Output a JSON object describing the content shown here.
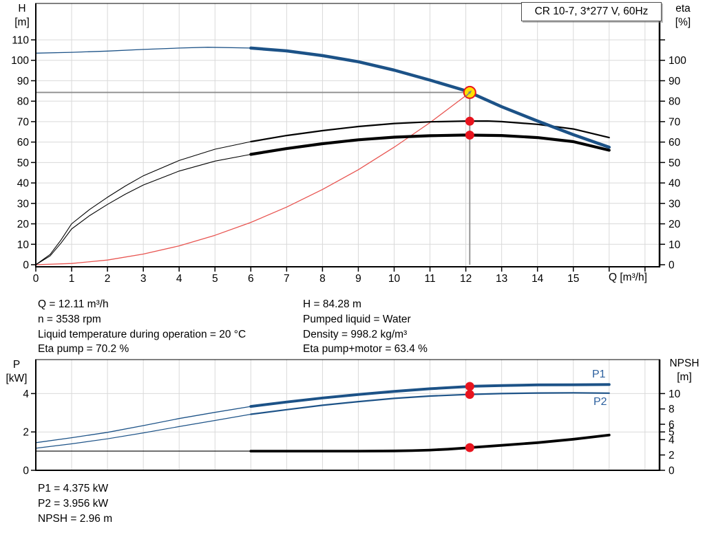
{
  "title_box": "CR 10-7, 3*277 V, 60Hz",
  "axis_titles": {
    "h": [
      "H",
      "[m]"
    ],
    "eta": [
      "eta",
      "[%]"
    ],
    "p": [
      "P",
      "[kW]"
    ],
    "npsh": [
      "NPSH",
      "[m]"
    ],
    "q": "Q [m³/h]"
  },
  "labels": {
    "p1": "P1",
    "p2": "P2"
  },
  "annotations": {
    "left": [
      "Q = 12.11 m³/h",
      "n = 3538 rpm",
      "Liquid temperature during operation = 20 °C",
      "Eta pump = 70.2 %"
    ],
    "right": [
      "H = 84.28 m",
      "Pumped liquid = Water",
      "Density = 998.2 kg/m³",
      "Eta pump+motor = 63.4 %"
    ],
    "footer": [
      "P1 = 4.375 kW",
      "P2 = 3.956 kW",
      "NPSH = 2.96 m"
    ]
  },
  "colors": {
    "grid": "#d9d9d9",
    "guide": "#8c8c8c",
    "curve_blue": "#1c5287",
    "curve_black": "#000000",
    "curve_red": "#e85450",
    "dot_red": "#e8141e",
    "duty_yellow": "#ffe100",
    "label_blue": "#2b5f9e"
  },
  "chart_data": [
    {
      "type": "line",
      "title": "CR 10-7, 3*277 V, 60Hz",
      "x": {
        "label": "Q [m³/h]",
        "min": 0,
        "max": 17.4,
        "grid": [
          1,
          2,
          3,
          4,
          5,
          6,
          7,
          8,
          9,
          10,
          11,
          12,
          13,
          14,
          15,
          16,
          17
        ],
        "ticks": [
          {
            "v": 0,
            "label": "0"
          },
          {
            "v": 1,
            "label": "1"
          },
          {
            "v": 2,
            "label": "2"
          },
          {
            "v": 3,
            "label": "3"
          },
          {
            "v": 4,
            "label": "4"
          },
          {
            "v": 5,
            "label": "5"
          },
          {
            "v": 6,
            "label": "6"
          },
          {
            "v": 7,
            "label": "7"
          },
          {
            "v": 8,
            "label": "8"
          },
          {
            "v": 9,
            "label": "9"
          },
          {
            "v": 10,
            "label": "10"
          },
          {
            "v": 11,
            "label": "11"
          },
          {
            "v": 12,
            "label": "12"
          },
          {
            "v": 13,
            "label": "13"
          },
          {
            "v": 14,
            "label": "14"
          },
          {
            "v": 15,
            "label": "15"
          },
          {
            "v": 16,
            "label": ""
          },
          {
            "v": 17,
            "label": ""
          }
        ]
      },
      "y_left": {
        "label": "H [m]",
        "min": 0,
        "max": 128,
        "grid": [
          10,
          20,
          30,
          40,
          50,
          60,
          70,
          80,
          90,
          100,
          110
        ],
        "ticks": [
          {
            "v": 0,
            "label": "0"
          },
          {
            "v": 10,
            "label": "10"
          },
          {
            "v": 20,
            "label": "20"
          },
          {
            "v": 30,
            "label": "30"
          },
          {
            "v": 40,
            "label": "40"
          },
          {
            "v": 50,
            "label": "50"
          },
          {
            "v": 60,
            "label": "60"
          },
          {
            "v": 70,
            "label": "70"
          },
          {
            "v": 80,
            "label": "80"
          },
          {
            "v": 90,
            "label": "90"
          },
          {
            "v": 100,
            "label": "100"
          },
          {
            "v": 110,
            "label": "110"
          }
        ]
      },
      "y_right": {
        "label": "eta [%]",
        "ratio": 1,
        "ticks": [
          {
            "v": 0,
            "label": "0"
          },
          {
            "v": 10,
            "label": "10"
          },
          {
            "v": 20,
            "label": "20"
          },
          {
            "v": 30,
            "label": "30"
          },
          {
            "v": 40,
            "label": "40"
          },
          {
            "v": 50,
            "label": "50"
          },
          {
            "v": 60,
            "label": "60"
          },
          {
            "v": 70,
            "label": "70"
          },
          {
            "v": 80,
            "label": "80"
          },
          {
            "v": 90,
            "label": "90"
          },
          {
            "v": 100,
            "label": "100"
          },
          {
            "v": 110,
            "label": ""
          }
        ]
      },
      "guides": [
        {
          "type": "h",
          "v": 84.28,
          "from": 0,
          "to": 12.11
        },
        {
          "type": "v",
          "q": 12.11,
          "from": 0,
          "to": 84.28
        }
      ],
      "series": [
        {
          "name": "system-curve",
          "axis": "left",
          "color": "#e85450",
          "w": 1.3,
          "points": [
            [
              0,
              0
            ],
            [
              1,
              0.6
            ],
            [
              2,
              2.3
            ],
            [
              3,
              5.2
            ],
            [
              4,
              9.2
            ],
            [
              5,
              14.4
            ],
            [
              6,
              20.7
            ],
            [
              7,
              28.2
            ],
            [
              8,
              36.8
            ],
            [
              9,
              46.5
            ],
            [
              10,
              57.5
            ],
            [
              11,
              69.5
            ],
            [
              12,
              82.7
            ],
            [
              12.11,
              84.28
            ]
          ]
        },
        {
          "name": "eta-pump-curve",
          "axis": "right",
          "color": "#000000",
          "thick_from": 6,
          "w_thin": 1.1,
          "w_thick": 2.2,
          "points": [
            [
              0,
              0
            ],
            [
              0.4,
              5
            ],
            [
              0.7,
              12
            ],
            [
              1,
              20
            ],
            [
              1.5,
              27
            ],
            [
              2,
              33
            ],
            [
              2.5,
              38.5
            ],
            [
              3,
              43.5
            ],
            [
              4,
              51
            ],
            [
              5,
              56.5
            ],
            [
              6,
              60.2
            ],
            [
              7,
              63.2
            ],
            [
              8,
              65.6
            ],
            [
              9,
              67.6
            ],
            [
              10,
              69.1
            ],
            [
              11,
              69.9
            ],
            [
              12,
              70.25
            ],
            [
              12.6,
              70.3
            ],
            [
              13,
              70.0
            ],
            [
              14,
              68.7
            ],
            [
              15,
              66.4
            ],
            [
              16,
              62.2
            ]
          ]
        },
        {
          "name": "eta-pump-motor-curve",
          "axis": "right",
          "color": "#000000",
          "thick_from": 6,
          "w_thin": 1.1,
          "w_thick": 4.2,
          "points": [
            [
              0,
              0
            ],
            [
              0.4,
              4.3
            ],
            [
              0.7,
              10.5
            ],
            [
              1,
              17.5
            ],
            [
              1.5,
              24
            ],
            [
              2,
              29.5
            ],
            [
              2.5,
              34.5
            ],
            [
              3,
              39
            ],
            [
              4,
              45.8
            ],
            [
              5,
              50.7
            ],
            [
              6,
              54.0
            ],
            [
              7,
              56.8
            ],
            [
              8,
              59.2
            ],
            [
              9,
              61.1
            ],
            [
              10,
              62.4
            ],
            [
              11,
              63.1
            ],
            [
              12,
              63.45
            ],
            [
              12.11,
              63.4
            ],
            [
              13,
              63.2
            ],
            [
              14,
              62.2
            ],
            [
              15,
              60.2
            ],
            [
              16,
              56.0
            ]
          ]
        },
        {
          "name": "pump-head-curve",
          "axis": "left",
          "color": "#1c5287",
          "thick_from": 6,
          "w_thin": 1.3,
          "w_thick": 4.5,
          "points": [
            [
              0,
              103.5
            ],
            [
              1,
              103.9
            ],
            [
              2,
              104.5
            ],
            [
              3,
              105.3
            ],
            [
              4,
              106.0
            ],
            [
              4.8,
              106.4
            ],
            [
              6,
              106.0
            ],
            [
              7,
              104.6
            ],
            [
              8,
              102.3
            ],
            [
              9,
              99.3
            ],
            [
              10,
              95.2
            ],
            [
              11,
              90.3
            ],
            [
              12,
              85.1
            ],
            [
              12.11,
              84.28
            ],
            [
              13,
              77.3
            ],
            [
              14,
              70.3
            ],
            [
              15,
              63.6
            ],
            [
              16,
              57.5
            ]
          ]
        }
      ],
      "markers": [
        {
          "kind": "dot",
          "q": 12.11,
          "v": 70.2,
          "axis": "right"
        },
        {
          "kind": "dot",
          "q": 12.11,
          "v": 63.4,
          "axis": "right"
        },
        {
          "kind": "duty",
          "q": 12.11,
          "v": 84.28,
          "axis": "left"
        }
      ]
    },
    {
      "type": "line",
      "x": {
        "label": "Q [m³/h]",
        "min": 0,
        "max": 17.4,
        "grid": [
          1,
          2,
          3,
          4,
          5,
          6,
          7,
          8,
          9,
          10,
          11,
          12,
          13,
          14,
          15,
          16,
          17
        ],
        "ticks": []
      },
      "y_left": {
        "label": "P [kW]",
        "min": 0,
        "max": 5.8,
        "grid": [
          2,
          4
        ],
        "ticks": [
          {
            "v": 0,
            "label": "0"
          },
          {
            "v": 2,
            "label": "2"
          },
          {
            "v": 4,
            "label": "4"
          }
        ]
      },
      "y_right": {
        "label": "NPSH [m]",
        "ratio": 2.5,
        "ticks": [
          {
            "v": 0,
            "label": "0"
          },
          {
            "v": 2,
            "label": "2"
          },
          {
            "v": 4,
            "label": "4"
          },
          {
            "v": 5,
            "label": "5"
          },
          {
            "v": 6,
            "label": "6"
          },
          {
            "v": 8,
            "label": "8"
          },
          {
            "v": 10,
            "label": "10"
          }
        ]
      },
      "guides": [],
      "series": [
        {
          "name": "npsh-curve",
          "axis": "right",
          "color": "#000000",
          "thick_from": 6,
          "w_thin": 1.1,
          "w_thick": 3.8,
          "points": [
            [
              0,
              2.5
            ],
            [
              2,
              2.5
            ],
            [
              4,
              2.5
            ],
            [
              6,
              2.5
            ],
            [
              8,
              2.5
            ],
            [
              9,
              2.5
            ],
            [
              10,
              2.53
            ],
            [
              10.5,
              2.56
            ],
            [
              11,
              2.63
            ],
            [
              11.5,
              2.75
            ],
            [
              12,
              2.91
            ],
            [
              12.11,
              2.96
            ],
            [
              13,
              3.25
            ],
            [
              14,
              3.6
            ],
            [
              15,
              4.05
            ],
            [
              16,
              4.6
            ]
          ]
        },
        {
          "name": "p2-curve",
          "axis": "left",
          "color": "#1c5287",
          "thick_from": 6,
          "w_thin": 1.2,
          "w_thick": 2.2,
          "points": [
            [
              0,
              1.15
            ],
            [
              1,
              1.38
            ],
            [
              2,
              1.64
            ],
            [
              3,
              1.95
            ],
            [
              4,
              2.28
            ],
            [
              5,
              2.6
            ],
            [
              6,
              2.92
            ],
            [
              7,
              3.16
            ],
            [
              8,
              3.39
            ],
            [
              9,
              3.58
            ],
            [
              10,
              3.75
            ],
            [
              11,
              3.87
            ],
            [
              12,
              3.95
            ],
            [
              12.11,
              3.956
            ],
            [
              13,
              4.0
            ],
            [
              14,
              4.03
            ],
            [
              15,
              4.04
            ],
            [
              16,
              4.02
            ]
          ]
        },
        {
          "name": "p1-curve",
          "axis": "left",
          "color": "#1c5287",
          "thick_from": 6,
          "w_thin": 1.3,
          "w_thick": 4,
          "points": [
            [
              0,
              1.44
            ],
            [
              1,
              1.7
            ],
            [
              2,
              1.98
            ],
            [
              3,
              2.33
            ],
            [
              4,
              2.7
            ],
            [
              5,
              3.02
            ],
            [
              6,
              3.33
            ],
            [
              7,
              3.56
            ],
            [
              8,
              3.77
            ],
            [
              9,
              3.95
            ],
            [
              10,
              4.11
            ],
            [
              11,
              4.25
            ],
            [
              12,
              4.36
            ],
            [
              12.11,
              4.375
            ],
            [
              13,
              4.42
            ],
            [
              14,
              4.45
            ],
            [
              15,
              4.46
            ],
            [
              16,
              4.47
            ]
          ]
        }
      ],
      "markers": [
        {
          "kind": "dot",
          "q": 12.11,
          "v": 4.375,
          "axis": "left"
        },
        {
          "kind": "dot",
          "q": 12.11,
          "v": 3.956,
          "axis": "left"
        },
        {
          "kind": "dot",
          "q": 12.11,
          "v": 2.96,
          "axis": "right"
        }
      ]
    }
  ]
}
